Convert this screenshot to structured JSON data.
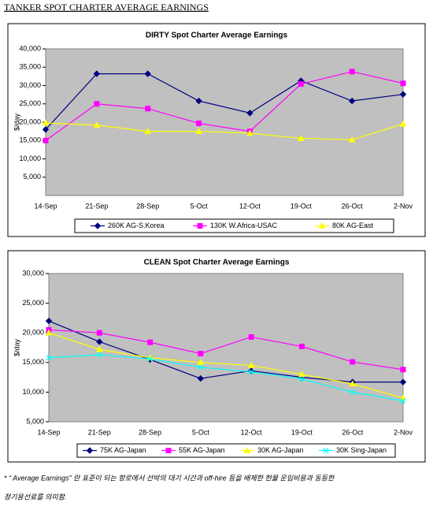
{
  "title": "TANKER SPOT CHARTER AVERAGE EARNINGS",
  "footnote": [
    "* “ Average Earnings” 란 표준이 되는 항로에서 선박의 대기 시간과 off-hire 등을 배제한 현물 운임비용과 동등한",
    "정기용선료를 의미함."
  ],
  "chart_data": [
    {
      "type": "line",
      "title": "DIRTY Spot Charter Average  Earnings",
      "y_label": "$/day",
      "categories": [
        "14-Sep",
        "21-Sep",
        "28-Sep",
        "5-Oct",
        "12-Oct",
        "19-Oct",
        "26-Oct",
        "2-Nov"
      ],
      "ylim": [
        0,
        40000
      ],
      "yticks": [
        {
          "value": 5000,
          "label": "5,000"
        },
        {
          "value": 10000,
          "label": "10,000"
        },
        {
          "value": 15000,
          "label": "15,000"
        },
        {
          "value": 20000,
          "label": "20,000"
        },
        {
          "value": 25000,
          "label": "25,000"
        },
        {
          "value": 30000,
          "label": "30,000"
        },
        {
          "value": 35000,
          "label": "35,000"
        },
        {
          "value": 40000,
          "label": "40,000"
        }
      ],
      "series": [
        {
          "name": "260K AG-S.Korea",
          "color": "#000080",
          "marker": "diamond",
          "values": [
            18000,
            33200,
            33200,
            25800,
            22500,
            31300,
            25800,
            27600
          ]
        },
        {
          "name": "130K W.Africa-USAC",
          "color": "#ff00ff",
          "marker": "square",
          "values": [
            15000,
            25000,
            23700,
            19700,
            17500,
            30400,
            33800,
            30600
          ]
        },
        {
          "name": "80K AG-East",
          "color": "#ffff00",
          "marker": "triangle",
          "values": [
            19800,
            19200,
            17500,
            17500,
            17000,
            15600,
            15200,
            19500
          ]
        }
      ]
    },
    {
      "type": "line",
      "title": "CLEAN Spot Charter Average Earnings",
      "y_label": "$/day",
      "categories": [
        "14-Sep",
        "21-Sep",
        "28-Sep",
        "5-Oct",
        "12-Oct",
        "19-Oct",
        "26-Oct",
        "2-Nov"
      ],
      "ylim": [
        5000,
        30000
      ],
      "yticks": [
        {
          "value": 5000,
          "label": "5,000"
        },
        {
          "value": 10000,
          "label": "10,000"
        },
        {
          "value": 15000,
          "label": "15,000"
        },
        {
          "value": 20000,
          "label": "20,000"
        },
        {
          "value": 25000,
          "label": "25,000"
        },
        {
          "value": 30000,
          "label": "30,000"
        }
      ],
      "series": [
        {
          "name": "75K AG-Japan",
          "color": "#000080",
          "marker": "diamond",
          "values": [
            22000,
            18500,
            15500,
            12300,
            13600,
            12500,
            11700,
            11700
          ]
        },
        {
          "name": "55K AG-Japan",
          "color": "#ff00ff",
          "marker": "square",
          "values": [
            20500,
            20000,
            18400,
            16500,
            19300,
            17700,
            15100,
            13800
          ]
        },
        {
          "name": "30K AG-Japan",
          "color": "#ffff00",
          "marker": "triangle",
          "values": [
            20000,
            17200,
            15800,
            15000,
            14500,
            13000,
            11400,
            9000
          ]
        },
        {
          "name": "30K Sing-Japan",
          "color": "#00ffff",
          "marker": "x",
          "values": [
            15800,
            16300,
            15600,
            14200,
            13400,
            12200,
            10000,
            8500
          ]
        }
      ]
    }
  ]
}
